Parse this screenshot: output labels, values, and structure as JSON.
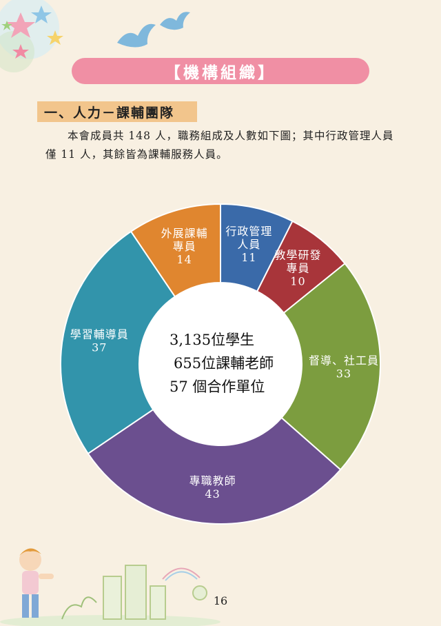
{
  "header": {
    "title": "【機構組織】"
  },
  "section": {
    "heading": "一、人力－課輔團隊"
  },
  "intro": {
    "text": "本會成員共 148 人，職務組成及人數如下圖；其中行政管理人員僅 11 人，其餘皆為課輔服務人員。"
  },
  "chart_data": {
    "type": "pie",
    "categories": [
      "行政管理人員",
      "教學研發專員",
      "督導、社工員",
      "專職教師",
      "學習輔導員",
      "外展課輔專員"
    ],
    "values": [
      11,
      10,
      33,
      43,
      37,
      14
    ],
    "label_lines": [
      [
        "行政管理",
        "人員"
      ],
      [
        "教學研發",
        "專員"
      ],
      [
        "督導、社工員"
      ],
      [
        "專職教師"
      ],
      [
        "學習輔導員"
      ],
      [
        "外展課輔",
        "專員"
      ]
    ],
    "colors": [
      "#3a6aa9",
      "#a8353a",
      "#7c9d3f",
      "#6b4f8f",
      "#3294ab",
      "#e0862f"
    ],
    "center_text": [
      "3,135位學生",
      "655位課輔老師",
      "57 個合作單位"
    ]
  },
  "footer": {
    "page_number": "16"
  }
}
